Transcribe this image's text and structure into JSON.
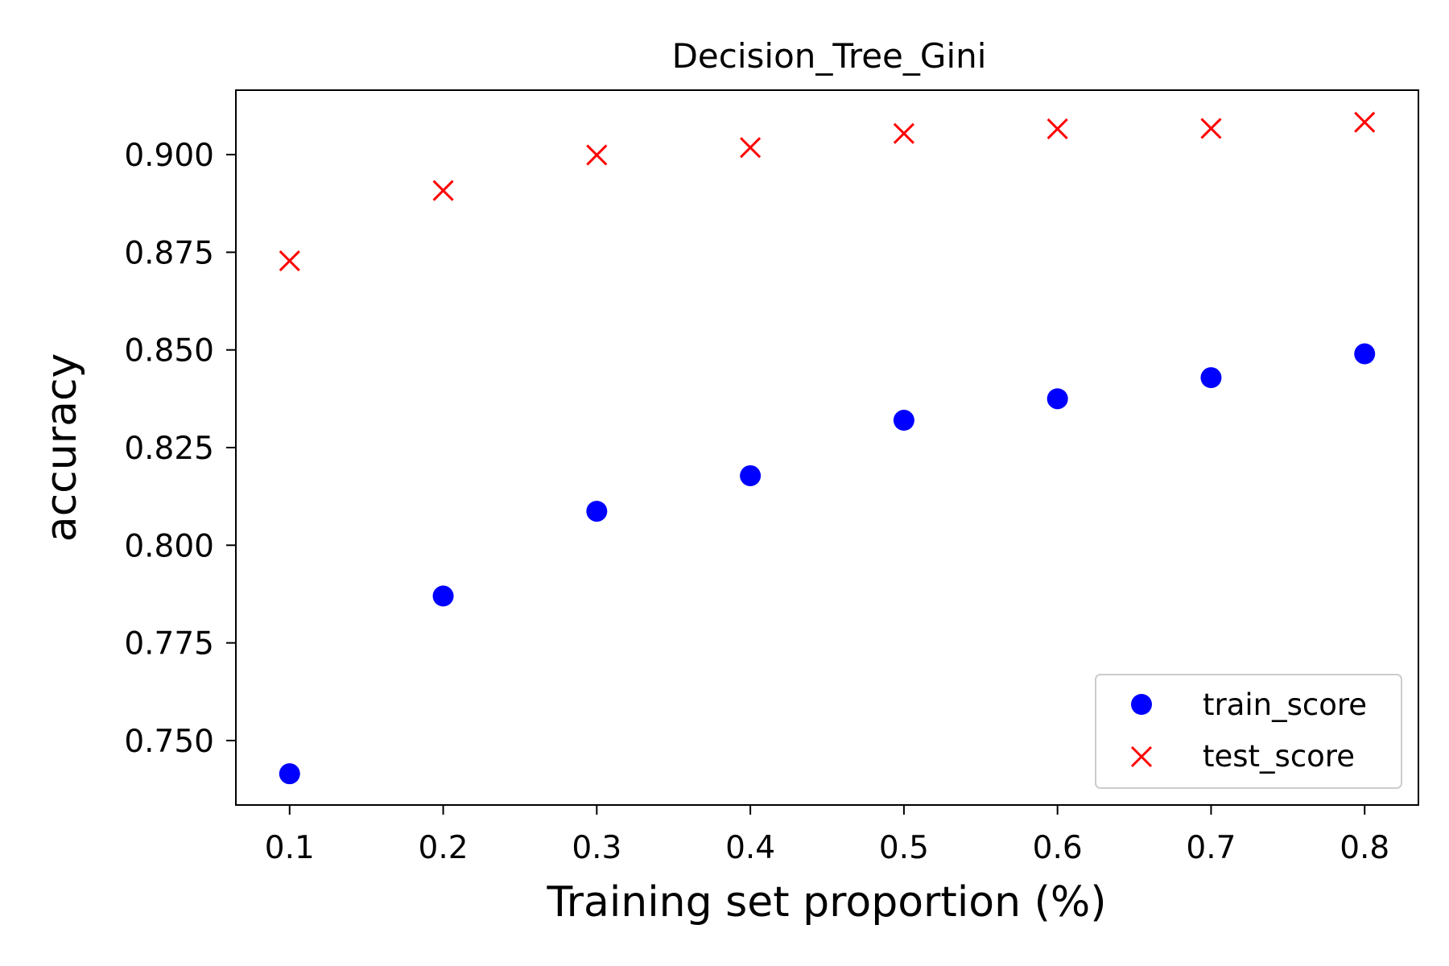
{
  "chart_data": {
    "type": "scatter",
    "title": "Decision_Tree_Gini",
    "xlabel": "Training set proportion (%)",
    "ylabel": "accuracy",
    "xlim": [
      0.065,
      0.835
    ],
    "ylim": [
      0.7335,
      0.9165
    ],
    "x_ticks": [
      0.1,
      0.2,
      0.3,
      0.4,
      0.5,
      0.6,
      0.7,
      0.8
    ],
    "x_tick_labels": [
      "0.1",
      "0.2",
      "0.3",
      "0.4",
      "0.5",
      "0.6",
      "0.7",
      "0.8"
    ],
    "y_ticks": [
      0.75,
      0.775,
      0.8,
      0.825,
      0.85,
      0.875,
      0.9
    ],
    "y_tick_labels": [
      "0.750",
      "0.775",
      "0.800",
      "0.825",
      "0.850",
      "0.875",
      "0.900"
    ],
    "grid": false,
    "legend_position": "lower-right",
    "x": [
      0.1,
      0.2,
      0.3,
      0.4,
      0.5,
      0.6,
      0.7,
      0.8
    ],
    "series": [
      {
        "name": "train_score",
        "marker": "circle",
        "color": "#0000ff",
        "values": [
          0.7415,
          0.787,
          0.8087,
          0.8178,
          0.832,
          0.8375,
          0.8429,
          0.849
        ]
      },
      {
        "name": "test_score",
        "marker": "x",
        "color": "#ff0000",
        "values": [
          0.8728,
          0.8908,
          0.8999,
          0.9018,
          0.9054,
          0.9066,
          0.9067,
          0.9083
        ]
      }
    ]
  }
}
